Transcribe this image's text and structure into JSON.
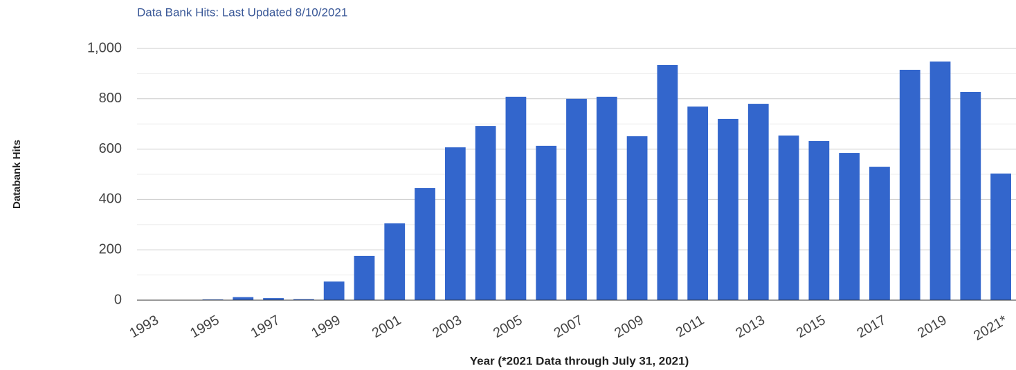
{
  "chart_data": {
    "type": "bar",
    "title": "Data Bank Hits: Last Updated 8/10/2021",
    "y_label": "Databank Hits",
    "x_label": "Year (*2021 Data through July 31, 2021)",
    "categories": [
      "1993",
      null,
      "1995",
      null,
      "1997",
      null,
      "1999",
      null,
      "2001",
      null,
      "2003",
      null,
      "2005",
      null,
      "2007",
      null,
      "2009",
      null,
      "2011",
      null,
      "2013",
      null,
      "2015",
      null,
      "2017",
      null,
      "2019",
      null,
      "2021*"
    ],
    "values": [
      0,
      0,
      3,
      12,
      8,
      4,
      74,
      176,
      305,
      445,
      607,
      692,
      808,
      613,
      800,
      808,
      651,
      934,
      769,
      720,
      780,
      654,
      632,
      585,
      530,
      915,
      948,
      827,
      503
    ],
    "color": "#3366cc",
    "ylim": [
      0,
      1000
    ],
    "yticks": [
      0,
      200,
      400,
      600,
      800,
      {
        "value": 1000,
        "label": "1,000"
      }
    ],
    "grid": true,
    "minor_grid": true
  }
}
